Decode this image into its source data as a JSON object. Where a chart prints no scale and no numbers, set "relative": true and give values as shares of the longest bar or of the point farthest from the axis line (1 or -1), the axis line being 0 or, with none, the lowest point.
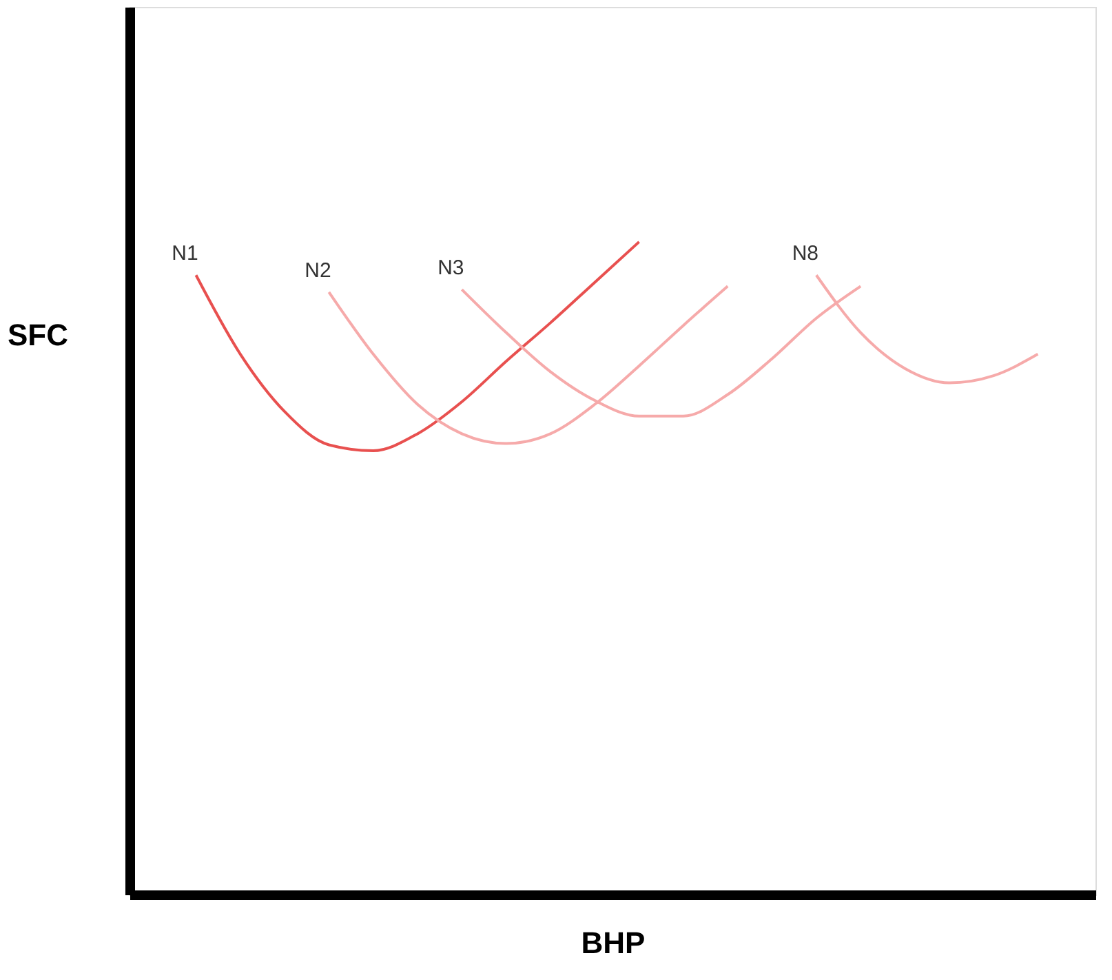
{
  "chart_data": {
    "type": "line",
    "relative": true,
    "xlabel": "BHP",
    "ylabel": "SFC",
    "categories": [
      null,
      null,
      null,
      null,
      null,
      null,
      null,
      null,
      null,
      null,
      null,
      null,
      null,
      null,
      null,
      null,
      null,
      null,
      null,
      null
    ],
    "series": [
      {
        "name": "N1",
        "color": "#e8504f",
        "values": [
          0.949,
          0.828,
          0.74,
          0.689,
          0.68,
          0.706,
          0.755,
          0.817,
          0.876,
          0.938,
          1.0,
          null,
          null,
          null,
          null,
          null,
          null,
          null,
          null,
          null
        ]
      },
      {
        "name": "N2",
        "color": "#f6aaaa",
        "values": [
          null,
          null,
          null,
          0.923,
          0.828,
          0.751,
          0.706,
          0.691,
          0.706,
          0.751,
          0.81,
          0.872,
          0.932,
          null,
          null,
          null,
          null,
          null,
          null,
          null
        ]
      },
      {
        "name": "N3",
        "color": "#f6aaaa",
        "values": [
          null,
          null,
          null,
          null,
          null,
          null,
          0.927,
          0.861,
          0.801,
          0.757,
          0.733,
          0.733,
          0.766,
          0.821,
          0.883,
          0.932,
          null,
          null,
          null,
          null
        ]
      },
      {
        "name": "N8",
        "color": "#f6aaaa",
        "values": [
          null,
          null,
          null,
          null,
          null,
          null,
          null,
          null,
          null,
          null,
          null,
          null,
          null,
          null,
          0.949,
          0.861,
          0.806,
          0.784,
          0.795,
          0.828
        ]
      }
    ],
    "grid": false,
    "tick_labels": false,
    "marker": "none",
    "line_style": "solid"
  }
}
